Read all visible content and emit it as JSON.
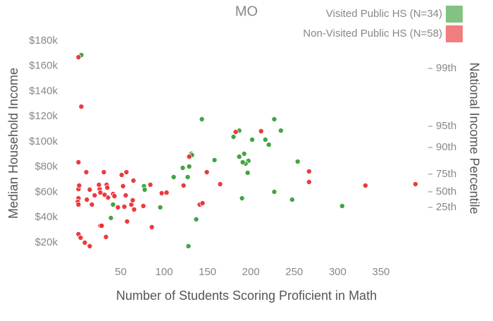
{
  "chart_data": {
    "type": "scatter",
    "title": "MO",
    "xlabel": "Number of Students Scoring Proficient in Math",
    "ylabel": "Median Household Income",
    "y2label": "National Income Percentile",
    "xlim": [
      -4,
      398
    ],
    "ylim": [
      11000,
      184500
    ],
    "y2lim": [
      11000,
      184500
    ],
    "xticks": [
      50,
      100,
      150,
      200,
      250,
      300,
      350
    ],
    "yticks": [
      {
        "value": 20000,
        "label": "$20k"
      },
      {
        "value": 40000,
        "label": "$40k"
      },
      {
        "value": 60000,
        "label": "$60k"
      },
      {
        "value": 80000,
        "label": "$80k"
      },
      {
        "value": 100000,
        "label": "$100k"
      },
      {
        "value": 120000,
        "label": "$120k"
      },
      {
        "value": 140000,
        "label": "$140k"
      },
      {
        "value": 160000,
        "label": "$160k"
      },
      {
        "value": 180000,
        "label": "$180k"
      }
    ],
    "y2ticks": [
      {
        "value": 48000,
        "label": "25th"
      },
      {
        "value": 60300,
        "label": "50th"
      },
      {
        "value": 74300,
        "label": "75th"
      },
      {
        "value": 95500,
        "label": "90th"
      },
      {
        "value": 112300,
        "label": "95th"
      },
      {
        "value": 158200,
        "label": "99th"
      }
    ],
    "legend": "top-right",
    "series": [
      {
        "name": "Visited Public HS (N=34)",
        "color": "#2f9a2f",
        "x": [
          4.5,
          143.5,
          227,
          186.6,
          234.6,
          180,
          216.7,
          201.5,
          220.7,
          131.3,
          192.3,
          158.1,
          197.2,
          193.9,
          254,
          128.9,
          121.5,
          196.3,
          111,
          127.2,
          76.8,
          77.6,
          227,
          189.8,
          247.6,
          305.3,
          41.1,
          95.5,
          38.6,
          137,
          128,
          190.6,
          186.6,
          132.1
        ],
        "values": [
          168800,
          117900,
          117900,
          108900,
          108900,
          103900,
          101700,
          101700,
          97700,
          90500,
          90500,
          85500,
          84900,
          82700,
          84300,
          80400,
          79300,
          75400,
          72000,
          72000,
          64800,
          62000,
          60300,
          55200,
          54100,
          49100,
          50200,
          48000,
          39600,
          38500,
          17200,
          83800,
          88200,
          89400
        ]
      },
      {
        "name": "Non-Visited Public HS (N=58)",
        "color": "#e8262a",
        "x": [
          1.2,
          4.5,
          1.2,
          10.2,
          1.2,
          14.2,
          1.2,
          0.4,
          1.2,
          10.9,
          19.9,
          25.6,
          30.5,
          24.8,
          33.7,
          34.5,
          26.4,
          35.3,
          41.1,
          42.7,
          46.7,
          54.1,
          56.5,
          51,
          52.6,
          55.7,
          62.2,
          63.8,
          65.4,
          57.3,
          64.6,
          76,
          85.8,
          84.1,
          97.2,
          102.8,
          122.4,
          128.9,
          149.2,
          141,
          144.3,
          164.6,
          182.5,
          211.8,
          267.1,
          267.1,
          332.1,
          389.8,
          1.2,
          3.7,
          8.5,
          14.2,
          26.4,
          28,
          32.9,
          2,
          31.3,
          16.7
        ],
        "values": [
          167100,
          127900,
          83800,
          75900,
          62500,
          62000,
          55200,
          52400,
          50200,
          54100,
          57500,
          62500,
          75900,
          65900,
          65900,
          63600,
          59700,
          55800,
          58600,
          56900,
          48000,
          48500,
          75900,
          73700,
          64800,
          57500,
          50200,
          53600,
          46300,
          36800,
          69200,
          49100,
          32300,
          65900,
          59200,
          59700,
          65300,
          88200,
          75900,
          50200,
          51300,
          66400,
          107800,
          108400,
          76500,
          68100,
          65300,
          66400,
          26700,
          23900,
          20000,
          17200,
          33400,
          33400,
          24500,
          65300,
          58000,
          50200
        ]
      }
    ]
  }
}
